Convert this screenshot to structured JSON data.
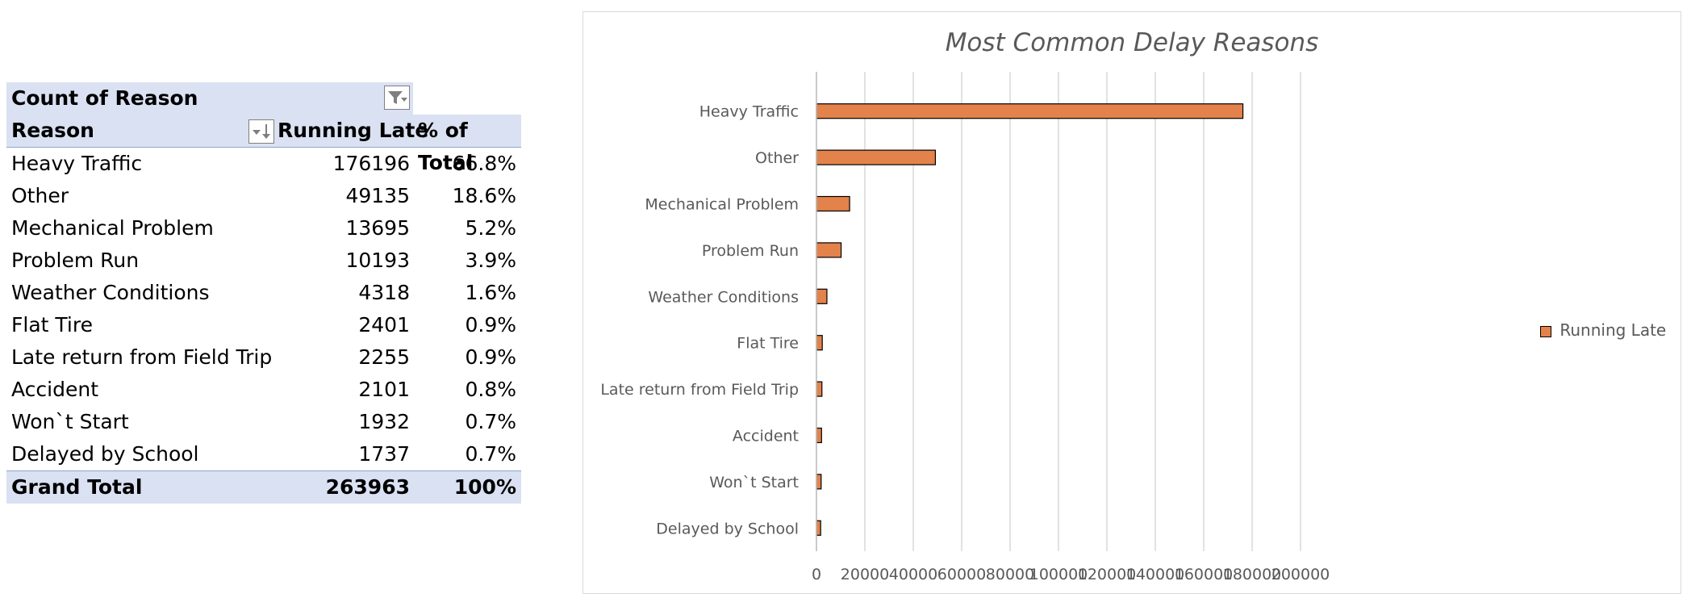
{
  "pivot": {
    "header_row1": "Count of Reason",
    "header_row2": {
      "reason": "Reason",
      "running_late": "Running Late",
      "pct": "% of Total"
    },
    "rows": [
      {
        "reason": "Heavy Traffic",
        "count": "176196",
        "pct": "66.8%"
      },
      {
        "reason": "Other",
        "count": "49135",
        "pct": "18.6%"
      },
      {
        "reason": "Mechanical Problem",
        "count": "13695",
        "pct": "5.2%"
      },
      {
        "reason": "Problem Run",
        "count": "10193",
        "pct": "3.9%"
      },
      {
        "reason": "Weather Conditions",
        "count": "4318",
        "pct": "1.6%"
      },
      {
        "reason": "Flat Tire",
        "count": "2401",
        "pct": "0.9%"
      },
      {
        "reason": "Late return from Field Trip",
        "count": "2255",
        "pct": "0.9%"
      },
      {
        "reason": "Accident",
        "count": "2101",
        "pct": "0.8%"
      },
      {
        "reason": "Won`t Start",
        "count": "1932",
        "pct": "0.7%"
      },
      {
        "reason": "Delayed by School",
        "count": "1737",
        "pct": "0.7%"
      }
    ],
    "total": {
      "label": "Grand Total",
      "count": "263963",
      "pct": "100%"
    },
    "icons": {
      "filter": "filter-icon",
      "sort": "sort-descending-icon"
    }
  },
  "chart_data": {
    "type": "bar",
    "orientation": "horizontal",
    "title": "Most Common Delay Reasons",
    "categories": [
      "Heavy Traffic",
      "Other",
      "Mechanical Problem",
      "Problem Run",
      "Weather Conditions",
      "Flat Tire",
      "Late return from Field Trip",
      "Accident",
      "Won`t Start",
      "Delayed by School"
    ],
    "series": [
      {
        "name": "Running Late",
        "values": [
          176196,
          49135,
          13695,
          10193,
          4318,
          2401,
          2255,
          2101,
          1932,
          1737
        ],
        "color": "#e3824a"
      }
    ],
    "xlim": [
      0,
      200000
    ],
    "xticks": [
      0,
      20000,
      40000,
      60000,
      80000,
      100000,
      120000,
      140000,
      160000,
      180000,
      200000
    ],
    "grid": true,
    "legend_position": "right"
  }
}
